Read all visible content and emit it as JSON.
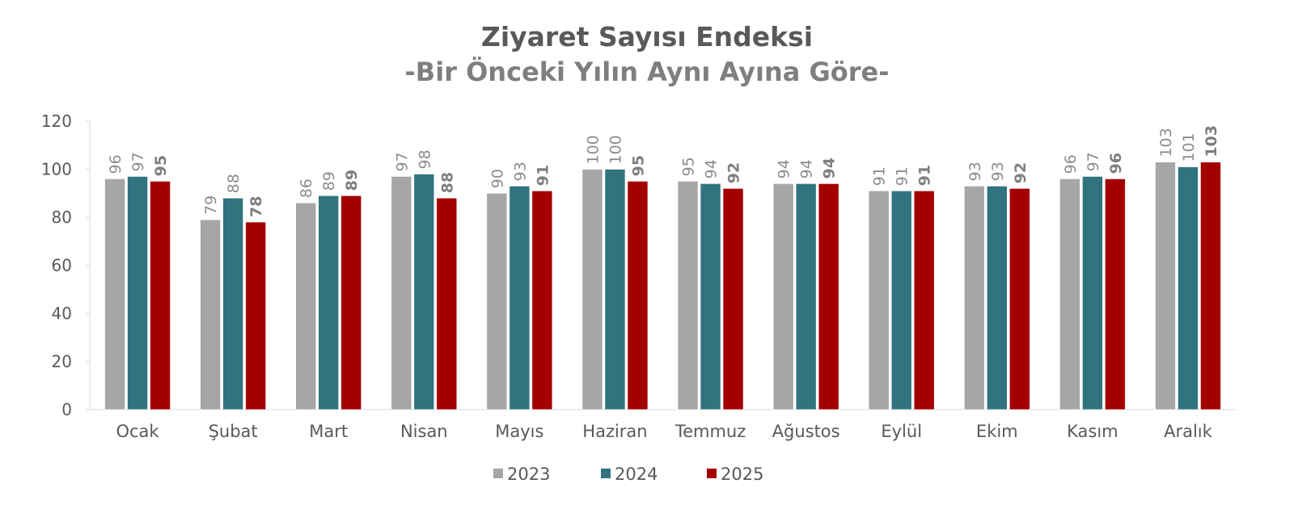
{
  "chart_data": {
    "type": "bar",
    "title": "Ziyaret Sayısı Endeksi",
    "subtitle": "-Bir Önceki Yılın Aynı Ayına Göre-",
    "xlabel": "",
    "ylabel": "",
    "ylim": [
      0,
      120
    ],
    "yticks": [
      0,
      20,
      40,
      60,
      80,
      100,
      120
    ],
    "grid": false,
    "legend_position": "bottom",
    "categories": [
      "Ocak",
      "Şubat",
      "Mart",
      "Nisan",
      "Mayıs",
      "Haziran",
      "Temmuz",
      "Ağustos",
      "Eylül",
      "Ekim",
      "Kasım",
      "Aralık"
    ],
    "series": [
      {
        "name": "2023",
        "color": "#a6a6a6",
        "label_bold": false,
        "values": [
          96,
          79,
          86,
          97,
          90,
          100,
          95,
          94,
          91,
          93,
          96,
          103
        ]
      },
      {
        "name": "2024",
        "color": "#31737f",
        "label_bold": false,
        "values": [
          97,
          88,
          89,
          98,
          93,
          100,
          94,
          94,
          91,
          93,
          97,
          101
        ]
      },
      {
        "name": "2025",
        "color": "#a50000",
        "label_bold": true,
        "values": [
          95,
          78,
          89,
          88,
          91,
          95,
          92,
          94,
          91,
          92,
          96,
          103
        ]
      }
    ]
  }
}
